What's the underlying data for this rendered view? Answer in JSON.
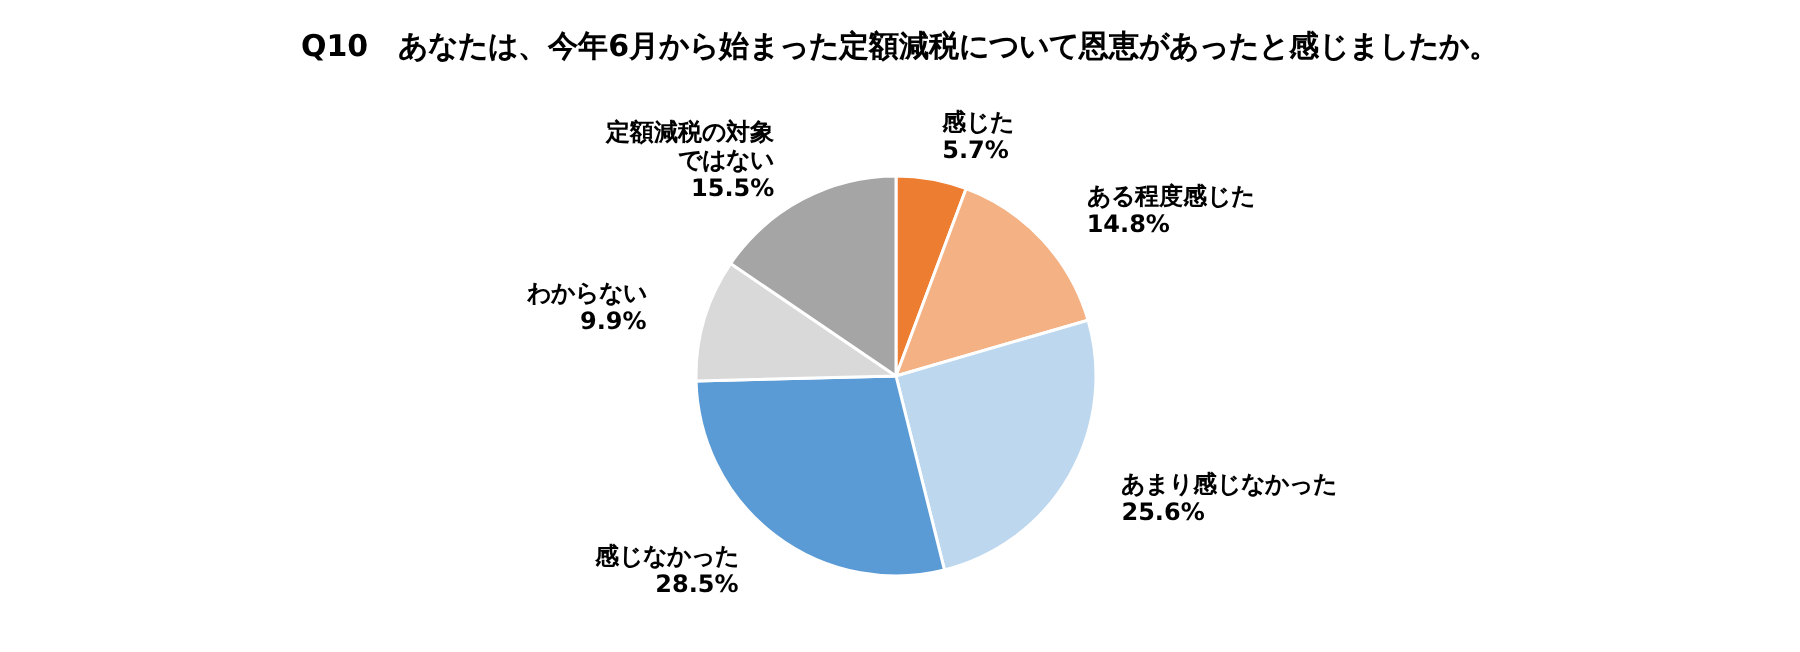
{
  "chart_data": {
    "type": "pie",
    "title": "Q10　あなたは、今年6月から始まった定額減税について恩恵があったと感じましたか。",
    "categories": [
      "感じた",
      "ある程度感じた",
      "あまり感じなかった",
      "感じなかった",
      "わからない",
      "定額減税の対象ではない"
    ],
    "values": [
      5.7,
      14.8,
      25.6,
      28.5,
      9.9,
      15.5
    ],
    "value_labels": [
      "5.7%",
      "14.8%",
      "25.6%",
      "28.5%",
      "9.9%",
      "15.5%"
    ],
    "colors": [
      "#ed7d31",
      "#f4b183",
      "#bdd7ee",
      "#5b9bd5",
      "#d9d9d9",
      "#a5a5a5"
    ]
  }
}
